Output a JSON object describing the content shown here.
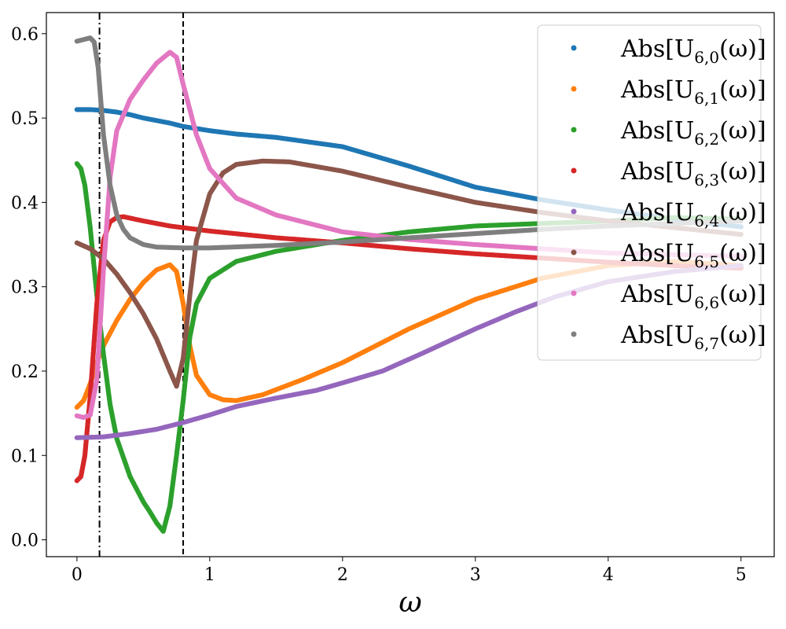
{
  "chart_data": {
    "type": "scatter",
    "xlabel": "ω",
    "ylabel": "",
    "xlim": [
      -0.23,
      5.25
    ],
    "ylim": [
      -0.02,
      0.625
    ],
    "xticks": [
      0,
      1,
      2,
      3,
      4,
      5
    ],
    "yticks": [
      0.0,
      0.1,
      0.2,
      0.3,
      0.4,
      0.5,
      0.6
    ],
    "xtick_labels": [
      "0",
      "1",
      "2",
      "3",
      "4",
      "5"
    ],
    "ytick_labels": [
      "0.0",
      "0.1",
      "0.2",
      "0.3",
      "0.4",
      "0.5",
      "0.6"
    ],
    "grid": false,
    "legend_position": "top-right",
    "vlines": [
      {
        "x": 0.17,
        "style": "dashdot"
      },
      {
        "x": 0.8,
        "style": "dashed"
      }
    ],
    "series": [
      {
        "name": "Abs[U_{6,0}(ω)]",
        "legend": {
          "base": "Abs[U",
          "sub": "6,0",
          "tail": "(ω)]"
        },
        "color": "#1f77b4",
        "x": [
          0,
          0.1,
          0.2,
          0.3,
          0.4,
          0.5,
          0.6,
          0.7,
          0.8,
          1.0,
          1.2,
          1.5,
          2.0,
          2.5,
          3.0,
          3.5,
          4.0,
          4.5,
          5.0
        ],
        "y": [
          0.51,
          0.51,
          0.509,
          0.507,
          0.504,
          0.5,
          0.497,
          0.494,
          0.49,
          0.485,
          0.481,
          0.477,
          0.466,
          0.443,
          0.418,
          0.403,
          0.391,
          0.38,
          0.371
        ]
      },
      {
        "name": "Abs[U_{6,1}(ω)]",
        "legend": {
          "base": "Abs[U",
          "sub": "6,1",
          "tail": "(ω)]"
        },
        "color": "#ff7f0e",
        "x": [
          0,
          0.05,
          0.1,
          0.15,
          0.2,
          0.3,
          0.4,
          0.5,
          0.6,
          0.7,
          0.75,
          0.8,
          0.85,
          0.9,
          1.0,
          1.1,
          1.2,
          1.4,
          1.7,
          2.0,
          2.5,
          3.0,
          3.5,
          4.0,
          4.5,
          5.0
        ],
        "y": [
          0.157,
          0.165,
          0.185,
          0.21,
          0.23,
          0.26,
          0.285,
          0.305,
          0.32,
          0.326,
          0.318,
          0.28,
          0.23,
          0.195,
          0.172,
          0.166,
          0.165,
          0.172,
          0.19,
          0.21,
          0.25,
          0.285,
          0.31,
          0.325,
          0.33,
          0.325
        ]
      },
      {
        "name": "Abs[U_{6,2}(ω)]",
        "legend": {
          "base": "Abs[U",
          "sub": "6,2",
          "tail": "(ω)]"
        },
        "color": "#2ca02c",
        "x": [
          0,
          0.03,
          0.06,
          0.1,
          0.15,
          0.2,
          0.25,
          0.3,
          0.4,
          0.5,
          0.55,
          0.6,
          0.65,
          0.7,
          0.75,
          0.8,
          0.85,
          0.9,
          1.0,
          1.2,
          1.5,
          2.0,
          2.5,
          3.0,
          3.5,
          4.0,
          4.5,
          5.0
        ],
        "y": [
          0.446,
          0.44,
          0.42,
          0.37,
          0.29,
          0.22,
          0.16,
          0.12,
          0.075,
          0.045,
          0.033,
          0.02,
          0.01,
          0.04,
          0.1,
          0.165,
          0.24,
          0.28,
          0.31,
          0.33,
          0.342,
          0.355,
          0.365,
          0.372,
          0.375,
          0.378,
          0.382,
          0.38
        ]
      },
      {
        "name": "Abs[U_{6,3}(ω)]",
        "legend": {
          "base": "Abs[U",
          "sub": "6,3",
          "tail": "(ω)]"
        },
        "color": "#d62728",
        "x": [
          0,
          0.03,
          0.06,
          0.1,
          0.15,
          0.2,
          0.25,
          0.3,
          0.35,
          0.5,
          0.7,
          1.0,
          1.5,
          2.0,
          2.5,
          3.0,
          3.5,
          4.0,
          4.5,
          5.0
        ],
        "y": [
          0.07,
          0.075,
          0.1,
          0.17,
          0.28,
          0.355,
          0.377,
          0.382,
          0.383,
          0.378,
          0.372,
          0.366,
          0.358,
          0.352,
          0.345,
          0.339,
          0.334,
          0.329,
          0.325,
          0.322
        ]
      },
      {
        "name": "Abs[U_{6,4}(ω)]",
        "legend": {
          "base": "Abs[U",
          "sub": "6,4",
          "tail": "(ω)]"
        },
        "color": "#9467bd",
        "x": [
          0,
          0.2,
          0.4,
          0.6,
          0.8,
          1.0,
          1.2,
          1.5,
          1.8,
          2.0,
          2.3,
          2.6,
          3.0,
          3.3,
          3.6,
          4.0,
          4.5,
          5.0
        ],
        "y": [
          0.121,
          0.122,
          0.126,
          0.131,
          0.139,
          0.148,
          0.158,
          0.168,
          0.177,
          0.186,
          0.2,
          0.221,
          0.25,
          0.27,
          0.288,
          0.306,
          0.318,
          0.325
        ]
      },
      {
        "name": "Abs[U_{6,5}(ω)]",
        "legend": {
          "base": "Abs[U",
          "sub": "6,5",
          "tail": "(ω)]"
        },
        "color": "#8c564b",
        "x": [
          0,
          0.1,
          0.2,
          0.3,
          0.4,
          0.5,
          0.6,
          0.7,
          0.75,
          0.8,
          0.85,
          0.9,
          1.0,
          1.1,
          1.2,
          1.4,
          1.6,
          2.0,
          2.5,
          3.0,
          3.5,
          4.0,
          4.5,
          5.0
        ],
        "y": [
          0.352,
          0.345,
          0.333,
          0.315,
          0.293,
          0.268,
          0.238,
          0.2,
          0.182,
          0.215,
          0.29,
          0.355,
          0.41,
          0.435,
          0.445,
          0.449,
          0.448,
          0.437,
          0.418,
          0.4,
          0.388,
          0.378,
          0.37,
          0.362
        ]
      },
      {
        "name": "Abs[U_{6,6}(ω)]",
        "legend": {
          "base": "Abs[U",
          "sub": "6,6",
          "tail": "(ω)]"
        },
        "color": "#e377c2",
        "x": [
          0,
          0.05,
          0.1,
          0.15,
          0.2,
          0.25,
          0.3,
          0.4,
          0.5,
          0.6,
          0.7,
          0.75,
          0.8,
          0.9,
          1.0,
          1.2,
          1.5,
          2.0,
          2.5,
          3.0,
          3.5,
          4.0,
          4.5,
          5.0
        ],
        "y": [
          0.147,
          0.145,
          0.148,
          0.19,
          0.32,
          0.43,
          0.485,
          0.522,
          0.545,
          0.565,
          0.578,
          0.572,
          0.54,
          0.48,
          0.44,
          0.405,
          0.385,
          0.365,
          0.356,
          0.35,
          0.345,
          0.34,
          0.338,
          0.336
        ]
      },
      {
        "name": "Abs[U_{6,7}(ω)]",
        "legend": {
          "base": "Abs[U",
          "sub": "6,7",
          "tail": "(ω)]"
        },
        "color": "#7f7f7f",
        "x": [
          0,
          0.05,
          0.1,
          0.13,
          0.16,
          0.2,
          0.25,
          0.3,
          0.35,
          0.4,
          0.5,
          0.6,
          0.8,
          1.0,
          1.5,
          2.0,
          2.5,
          3.0,
          3.5,
          4.0,
          4.5,
          5.0
        ],
        "y": [
          0.591,
          0.593,
          0.595,
          0.59,
          0.56,
          0.48,
          0.42,
          0.385,
          0.368,
          0.358,
          0.35,
          0.347,
          0.346,
          0.346,
          0.349,
          0.353,
          0.358,
          0.363,
          0.368,
          0.372,
          0.375,
          0.378
        ]
      }
    ]
  }
}
